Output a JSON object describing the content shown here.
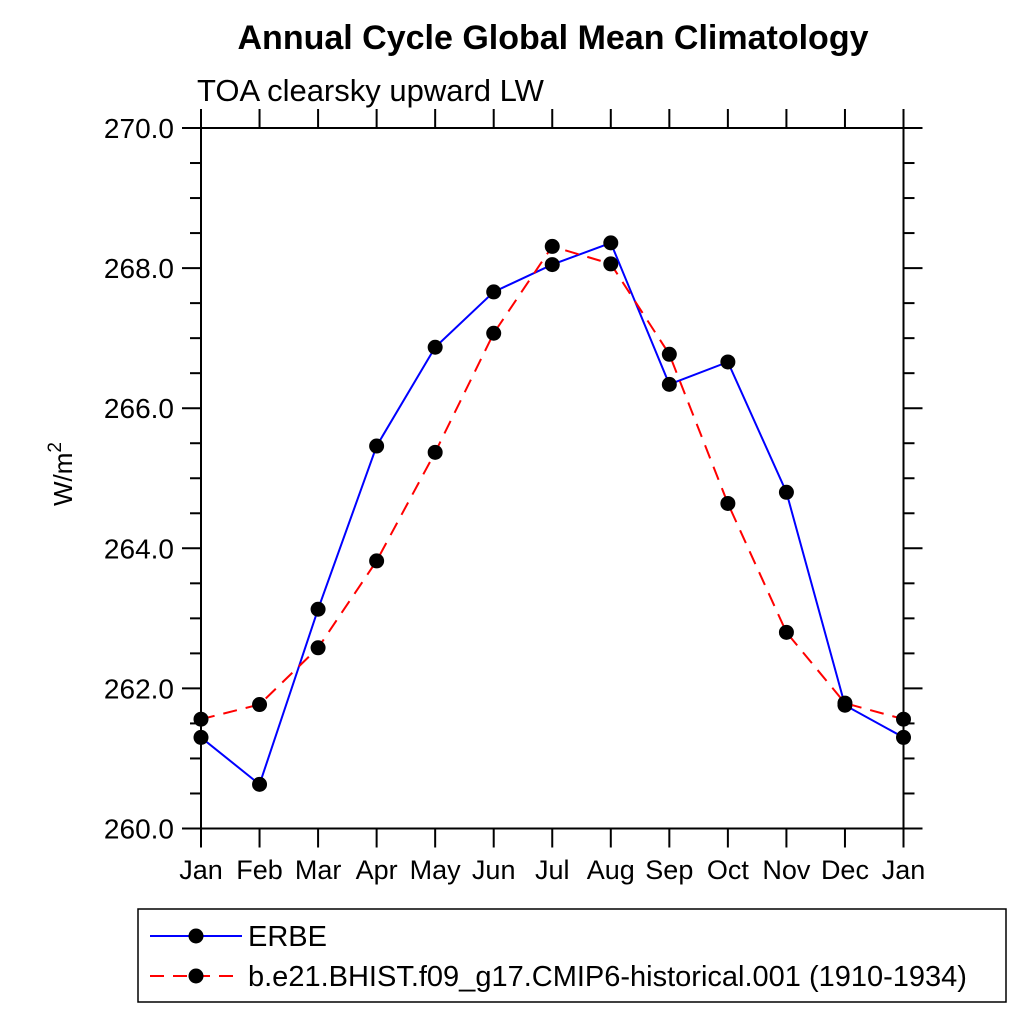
{
  "chart_data": {
    "type": "line",
    "title": "Annual Cycle Global Mean Climatology",
    "subtitle": "TOA clearsky upward LW",
    "ylabel_base": "W/m",
    "ylabel_sup": "2",
    "categories": [
      "Jan",
      "Feb",
      "Mar",
      "Apr",
      "May",
      "Jun",
      "Jul",
      "Aug",
      "Sep",
      "Oct",
      "Nov",
      "Dec",
      "Jan"
    ],
    "ylim": [
      260.0,
      270.0
    ],
    "ytick_major_values": [
      260.0,
      262.0,
      264.0,
      266.0,
      268.0,
      270.0
    ],
    "ytick_major_labels": [
      "260.0",
      "262.0",
      "264.0",
      "266.0",
      "268.0",
      "270.0"
    ],
    "ytick_minor_step": 0.5,
    "grid": false,
    "legend_position": "bottom-left",
    "marker": {
      "shape": "circle",
      "color": "#000000",
      "radius": 7.5
    },
    "frame_color": "#000000",
    "series": [
      {
        "name": "ERBE",
        "color": "#0000ff",
        "line_style": "solid",
        "values": [
          261.3,
          260.63,
          263.13,
          265.46,
          266.87,
          267.66,
          268.05,
          268.36,
          266.34,
          266.66,
          264.8,
          261.76,
          261.3
        ]
      },
      {
        "name": "b.e21.BHIST.f09_g17.CMIP6-historical.001 (1910-1934)",
        "color": "#ff0000",
        "line_style": "dashed",
        "values": [
          261.56,
          261.77,
          262.58,
          263.82,
          265.37,
          267.07,
          268.31,
          268.06,
          266.77,
          264.64,
          262.8,
          261.79,
          261.56
        ]
      }
    ]
  }
}
